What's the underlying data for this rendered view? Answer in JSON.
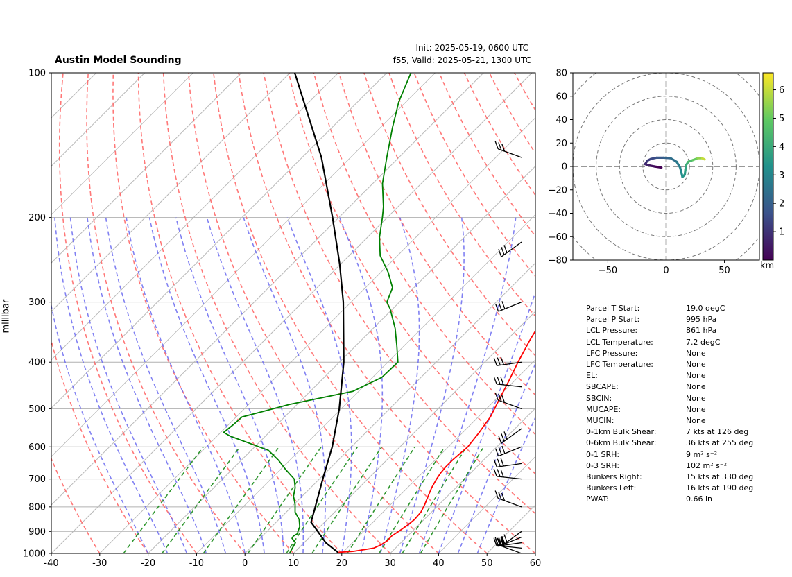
{
  "header": {
    "title": "Austin Model Sounding",
    "init": "Init: 2025-05-19, 0600 UTC",
    "valid": "f55, Valid: 2025-05-21, 1300 UTC"
  },
  "chart_data": [
    {
      "type": "skew-t",
      "ylabel": "millibar",
      "xlim": [
        -40,
        60
      ],
      "ylim": [
        1000,
        100
      ],
      "x_ticks": [
        -40,
        -30,
        -20,
        -10,
        0,
        10,
        20,
        30,
        40,
        50,
        60
      ],
      "y_ticks": [
        1000,
        900,
        800,
        700,
        600,
        500,
        400,
        300,
        200,
        100
      ],
      "series": [
        {
          "role": "temperature",
          "color": "#ff0000",
          "points": [
            [
              1000,
              20
            ],
            [
              995,
              19
            ],
            [
              990,
              22
            ],
            [
              975,
              25.5
            ],
            [
              960,
              26.3
            ],
            [
              940,
              26.8
            ],
            [
              920,
              26.7
            ],
            [
              900,
              27.2
            ],
            [
              870,
              27.8
            ],
            [
              850,
              28
            ],
            [
              820,
              27.8
            ],
            [
              790,
              27
            ],
            [
              760,
              26
            ],
            [
              730,
              25
            ],
            [
              700,
              24.2
            ],
            [
              680,
              23.8
            ],
            [
              660,
              23.6
            ],
            [
              640,
              23.6
            ],
            [
              620,
              23.8
            ],
            [
              600,
              24
            ],
            [
              560,
              23.4
            ],
            [
              520,
              22.5
            ],
            [
              480,
              20.8
            ],
            [
              440,
              19
            ],
            [
              400,
              16.9
            ],
            [
              360,
              14.8
            ],
            [
              320,
              12.8
            ],
            [
              300,
              11.8
            ],
            [
              270,
              10.4
            ],
            [
              240,
              8.2
            ],
            [
              210,
              5.2
            ],
            [
              190,
              2.8
            ],
            [
              175,
              -1.3
            ],
            [
              160,
              -5.3
            ],
            [
              145,
              -10
            ],
            [
              130,
              -15.5
            ],
            [
              115,
              -24
            ],
            [
              100,
              -32
            ]
          ]
        },
        {
          "role": "dewpoint",
          "color": "#008000",
          "points": [
            [
              1000,
              9.2
            ],
            [
              980,
              8.8
            ],
            [
              950,
              8.2
            ],
            [
              930,
              6.6
            ],
            [
              920,
              6.4
            ],
            [
              910,
              6.8
            ],
            [
              900,
              6.4
            ],
            [
              880,
              5.8
            ],
            [
              850,
              4.2
            ],
            [
              820,
              1.8
            ],
            [
              790,
              0.2
            ],
            [
              760,
              -1.8
            ],
            [
              730,
              -3.2
            ],
            [
              700,
              -5.2
            ],
            [
              670,
              -8.8
            ],
            [
              640,
              -12.3
            ],
            [
              610,
              -16.5
            ],
            [
              580,
              -24.5
            ],
            [
              570,
              -27.3
            ],
            [
              560,
              -29.4
            ],
            [
              540,
              -29
            ],
            [
              520,
              -28.8
            ],
            [
              490,
              -21.6
            ],
            [
              460,
              -11.2
            ],
            [
              430,
              -8.1
            ],
            [
              400,
              -7.9
            ],
            [
              370,
              -11.5
            ],
            [
              340,
              -15.5
            ],
            [
              310,
              -20.5
            ],
            [
              300,
              -22.6
            ],
            [
              280,
              -24.4
            ],
            [
              260,
              -28.5
            ],
            [
              240,
              -33.6
            ],
            [
              220,
              -37.5
            ],
            [
              200,
              -41
            ],
            [
              190,
              -43
            ],
            [
              170,
              -48
            ],
            [
              150,
              -52.5
            ],
            [
              130,
              -57.5
            ],
            [
              115,
              -61.5
            ],
            [
              100,
              -65
            ]
          ]
        },
        {
          "role": "parcel",
          "color": "#000000",
          "points": [
            [
              995,
              19
            ],
            [
              950,
              14.5
            ],
            [
              900,
              10.5
            ],
            [
              861,
              7.2
            ],
            [
              800,
              4.9
            ],
            [
              700,
              0.7
            ],
            [
              600,
              -4
            ],
            [
              500,
              -10.4
            ],
            [
              400,
              -19.1
            ],
            [
              300,
              -31.6
            ],
            [
              250,
              -40.2
            ],
            [
              200,
              -51.3
            ],
            [
              150,
              -66
            ],
            [
              100,
              -89
            ]
          ]
        }
      ],
      "wind_barb_levels_hpa": [
        1000,
        975,
        950,
        925,
        900,
        800,
        700,
        650,
        600,
        550,
        500,
        450,
        400,
        300,
        225,
        150
      ]
    },
    {
      "type": "hodograph",
      "xlim": [
        -80,
        80
      ],
      "ylim": [
        -80,
        80
      ],
      "x_ticks": [
        -50,
        0,
        50
      ],
      "y_ticks": [
        -80,
        -60,
        -40,
        -20,
        0,
        20,
        40,
        60,
        80
      ],
      "colorbar_label": "km",
      "colorbar_ticks": [
        1,
        2,
        3,
        4,
        5,
        6
      ],
      "points_km_u_v": [
        [
          0,
          -4,
          -1
        ],
        [
          0.3,
          -10,
          0
        ],
        [
          0.6,
          -15,
          1
        ],
        [
          0.9,
          -18,
          2
        ],
        [
          1.2,
          -16,
          5
        ],
        [
          1.5,
          -13,
          6.5
        ],
        [
          1.8,
          -8,
          7.5
        ],
        [
          2.1,
          -2,
          7.5
        ],
        [
          2.4,
          4,
          7
        ],
        [
          2.7,
          9,
          4
        ],
        [
          3.0,
          12,
          -1
        ],
        [
          3.2,
          13,
          -5
        ],
        [
          3.4,
          14,
          -9
        ],
        [
          3.6,
          16,
          -7
        ],
        [
          3.8,
          16.5,
          -3
        ],
        [
          4.1,
          17,
          1
        ],
        [
          4.5,
          19,
          4
        ],
        [
          5.0,
          23,
          5.5
        ],
        [
          5.5,
          27,
          7
        ],
        [
          6.0,
          31,
          7
        ],
        [
          6.5,
          33,
          6
        ]
      ]
    }
  ],
  "params": [
    {
      "k": "Parcel T Start:",
      "v": "19.0 degC"
    },
    {
      "k": "Parcel P Start:",
      "v": "995 hPa"
    },
    {
      "k": "LCL Pressure:",
      "v": "861 hPa"
    },
    {
      "k": "LCL Temperature:",
      "v": "7.2 degC"
    },
    {
      "k": "LFC Pressure:",
      "v": "None"
    },
    {
      "k": "LFC Temperature:",
      "v": "None"
    },
    {
      "k": "EL:",
      "v": "None"
    },
    {
      "k": "SBCAPE:",
      "v": "None"
    },
    {
      "k": "SBCIN:",
      "v": "None"
    },
    {
      "k": "MUCAPE:",
      "v": "None"
    },
    {
      "k": "MUCIN:",
      "v": "None"
    },
    {
      "k": "0-1km Bulk Shear:",
      "v": "7 kts at 126 deg"
    },
    {
      "k": "0-6km Bulk Shear:",
      "v": "36 kts at 255 deg"
    },
    {
      "k": "0-1 SRH:",
      "v": "9 m² s⁻²"
    },
    {
      "k": "0-3 SRH:",
      "v": "102 m² s⁻²"
    },
    {
      "k": "Bunkers Right:",
      "v": "15 kts at 330 deg"
    },
    {
      "k": "Bunkers Left:",
      "v": "16 kts at 190 deg"
    },
    {
      "k": "PWAT:",
      "v": "0.66 in"
    }
  ]
}
